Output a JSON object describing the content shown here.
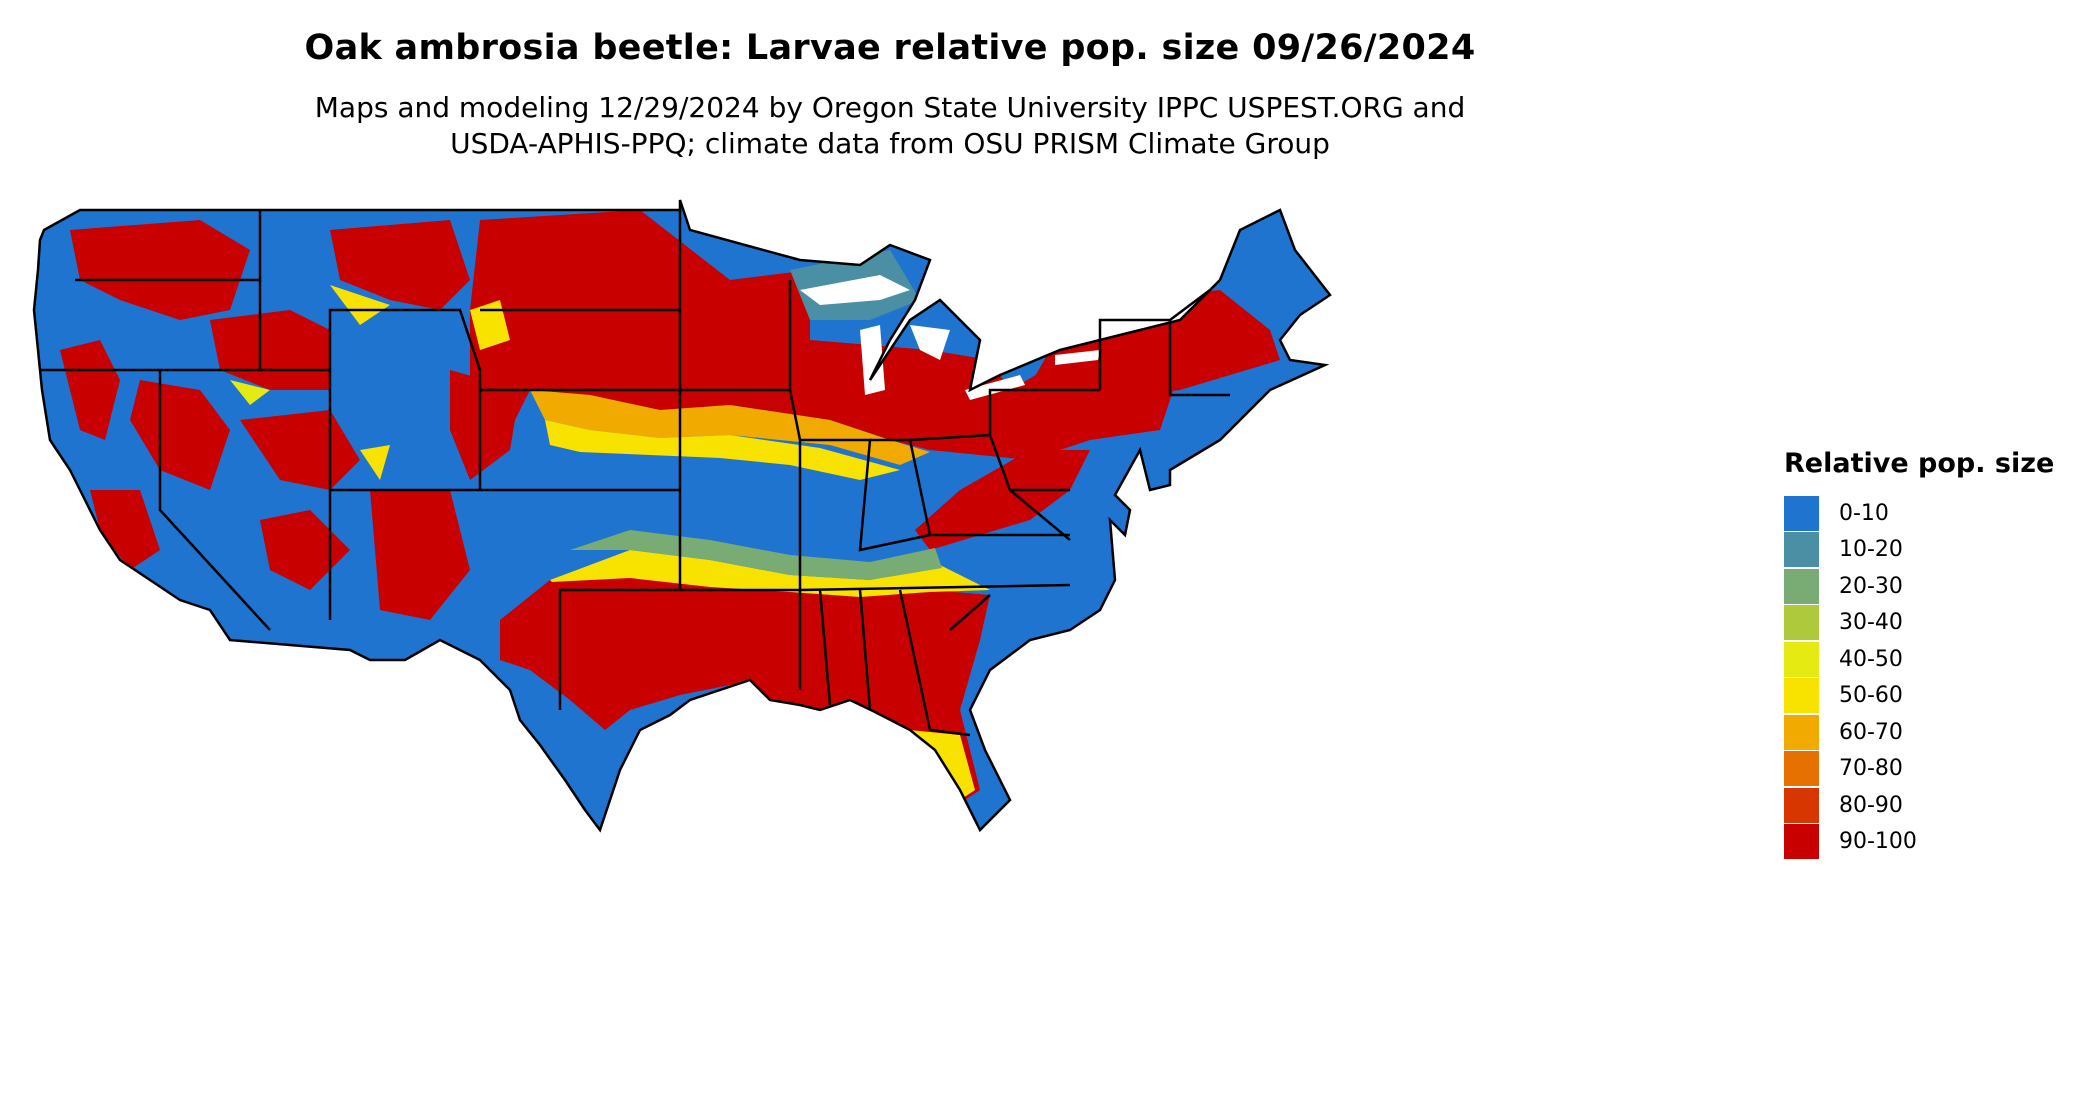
{
  "title": "Oak ambrosia beetle: Larvae relative pop. size 09/26/2024",
  "subtitle_line1": "Maps and modeling 12/29/2024 by Oregon State University IPPC USPEST.ORG and",
  "subtitle_line2": "USDA-APHIS-PPQ; climate data from OSU PRISM Climate Group",
  "legend": {
    "title": "Relative pop. size",
    "items": [
      {
        "label": "0-10",
        "color": "#1f74d0"
      },
      {
        "label": "10-20",
        "color": "#4a8fa4"
      },
      {
        "label": "20-30",
        "color": "#79ab74"
      },
      {
        "label": "30-40",
        "color": "#aeca3c"
      },
      {
        "label": "40-50",
        "color": "#e4ea12"
      },
      {
        "label": "50-60",
        "color": "#f8e200"
      },
      {
        "label": "60-70",
        "color": "#f0aa00"
      },
      {
        "label": "70-80",
        "color": "#e67000"
      },
      {
        "label": "80-90",
        "color": "#d83600"
      },
      {
        "label": "90-100",
        "color": "#c80000"
      }
    ]
  }
}
